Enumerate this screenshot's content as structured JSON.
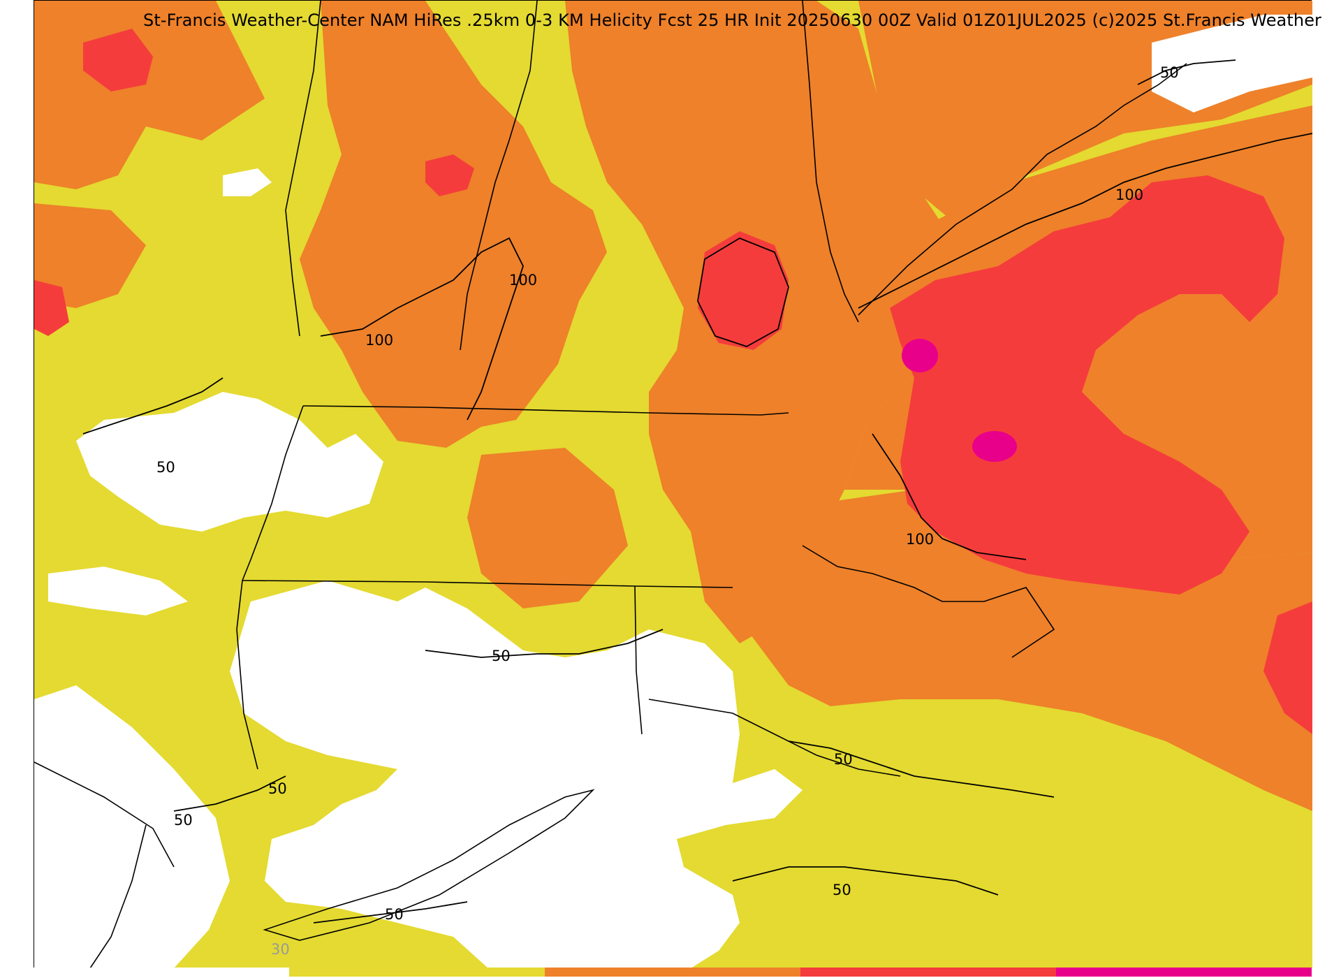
{
  "map": {
    "title": "St-Francis Weather-Center NAM HiRes .25km 0-3 KM Helicity Fcst 25 HR Init 20250630 00Z  Valid 01Z01JUL2025     (c)2025 St.Francis Weather",
    "field": "0-3 KM Helicity",
    "contour_levels": [
      "50",
      "100"
    ],
    "contour_labels": [
      "50",
      "100",
      "100",
      "100",
      "100",
      "50",
      "50",
      "50",
      "50",
      "50",
      "50",
      "50"
    ],
    "colors": {
      "below_30": "#ffffff",
      "band_30_50": "#e4da31",
      "band_50_100": "#ee812a",
      "band_100_150": "#f53c3c",
      "band_150_plus": "#e8008a",
      "contour": "#000000",
      "borders": "#000000"
    }
  },
  "colorbar": {
    "tick_label": "30",
    "segments": [
      {
        "color": "#ffffff",
        "share": 0.2
      },
      {
        "color": "#e4da31",
        "share": 0.2
      },
      {
        "color": "#ee812a",
        "share": 0.2
      },
      {
        "color": "#f53c3c",
        "share": 0.2
      },
      {
        "color": "#e8008a",
        "share": 0.2
      }
    ]
  }
}
